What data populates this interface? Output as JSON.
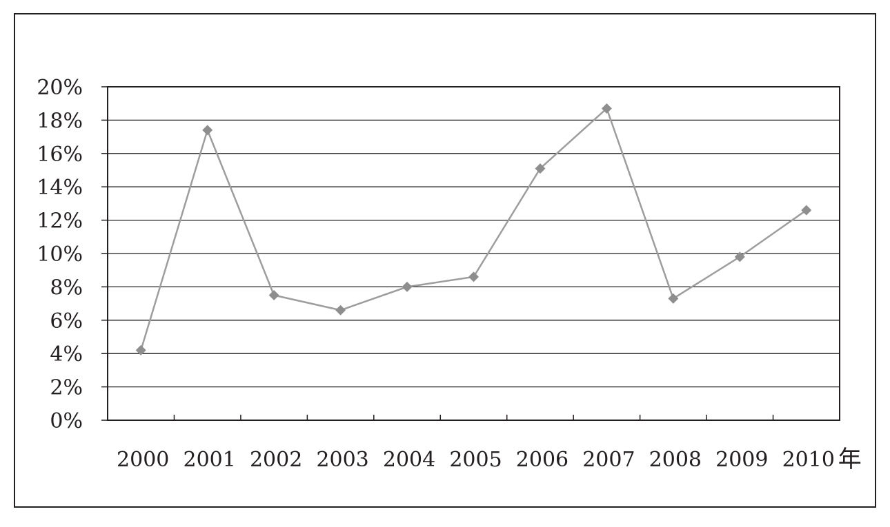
{
  "chart_data": {
    "type": "line",
    "title": "",
    "xlabel": "",
    "ylabel": "",
    "x_unit": "年",
    "categories": [
      "2000",
      "2001",
      "2002",
      "2003",
      "2004",
      "2005",
      "2006",
      "2007",
      "2008",
      "2009",
      "2010"
    ],
    "series": [
      {
        "values": [
          4.2,
          17.4,
          7.5,
          6.6,
          8.0,
          8.6,
          15.1,
          18.7,
          7.3,
          9.8,
          12.6
        ]
      }
    ],
    "ylim": [
      0,
      20
    ],
    "yticks": [
      0,
      2,
      4,
      6,
      8,
      10,
      12,
      14,
      16,
      18,
      20
    ],
    "ytick_labels": [
      "0%",
      "2%",
      "4%",
      "6%",
      "8%",
      "10%",
      "12%",
      "14%",
      "16%",
      "18%",
      "20%"
    ],
    "grid": true,
    "legend": "none",
    "colors": {
      "line": "#9d9d9d",
      "marker": "#8e8e8e",
      "grid": "#231f20",
      "axis": "#231f20"
    }
  }
}
